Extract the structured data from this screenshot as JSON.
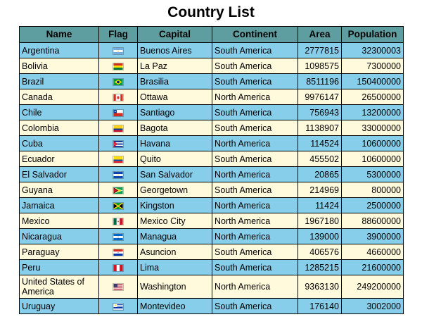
{
  "title": "Country List",
  "headers": {
    "name": "Name",
    "flag": "Flag",
    "capital": "Capital",
    "continent": "Continent",
    "area": "Area",
    "population": "Population"
  },
  "colors": {
    "header_bg": "#5f9ea0",
    "row_odd_bg": "#87ceeb",
    "row_even_bg": "#fffadc"
  },
  "rows": [
    {
      "name": "Argentina",
      "flag": "argentina-flag-icon",
      "capital": "Buenos Aires",
      "continent": "South America",
      "area": "2777815",
      "population": "32300003"
    },
    {
      "name": "Bolivia",
      "flag": "bolivia-flag-icon",
      "capital": "La Paz",
      "continent": "South America",
      "area": "1098575",
      "population": "7300000"
    },
    {
      "name": "Brazil",
      "flag": "brazil-flag-icon",
      "capital": "Brasilia",
      "continent": "South America",
      "area": "8511196",
      "population": "150400000"
    },
    {
      "name": "Canada",
      "flag": "canada-flag-icon",
      "capital": "Ottawa",
      "continent": "North America",
      "area": "9976147",
      "population": "26500000"
    },
    {
      "name": "Chile",
      "flag": "chile-flag-icon",
      "capital": "Santiago",
      "continent": "South America",
      "area": "756943",
      "population": "13200000"
    },
    {
      "name": "Colombia",
      "flag": "colombia-flag-icon",
      "capital": "Bagota",
      "continent": "South America",
      "area": "1138907",
      "population": "33000000"
    },
    {
      "name": "Cuba",
      "flag": "cuba-flag-icon",
      "capital": "Havana",
      "continent": "North America",
      "area": "114524",
      "population": "10600000"
    },
    {
      "name": "Ecuador",
      "flag": "ecuador-flag-icon",
      "capital": "Quito",
      "continent": "South America",
      "area": "455502",
      "population": "10600000"
    },
    {
      "name": "El Salvador",
      "flag": "el-salvador-flag-icon",
      "capital": "San Salvador",
      "continent": "North America",
      "area": "20865",
      "population": "5300000"
    },
    {
      "name": "Guyana",
      "flag": "guyana-flag-icon",
      "capital": "Georgetown",
      "continent": "South America",
      "area": "214969",
      "population": "800000"
    },
    {
      "name": "Jamaica",
      "flag": "jamaica-flag-icon",
      "capital": "Kingston",
      "continent": "North America",
      "area": "11424",
      "population": "2500000"
    },
    {
      "name": "Mexico",
      "flag": "mexico-flag-icon",
      "capital": "Mexico City",
      "continent": "North America",
      "area": "1967180",
      "population": "88600000"
    },
    {
      "name": "Nicaragua",
      "flag": "nicaragua-flag-icon",
      "capital": "Managua",
      "continent": "North America",
      "area": "139000",
      "population": "3900000"
    },
    {
      "name": "Paraguay",
      "flag": "paraguay-flag-icon",
      "capital": "Asuncion",
      "continent": "South America",
      "area": "406576",
      "population": "4660000"
    },
    {
      "name": "Peru",
      "flag": "peru-flag-icon",
      "capital": "Lima",
      "continent": "South America",
      "area": "1285215",
      "population": "21600000"
    },
    {
      "name": "United States of America",
      "flag": "usa-flag-icon",
      "capital": "Washington",
      "continent": "North America",
      "area": "9363130",
      "population": "249200000"
    },
    {
      "name": "Uruguay",
      "flag": "uruguay-flag-icon",
      "capital": "Montevideo",
      "continent": "South America",
      "area": "176140",
      "population": "3002000"
    }
  ]
}
